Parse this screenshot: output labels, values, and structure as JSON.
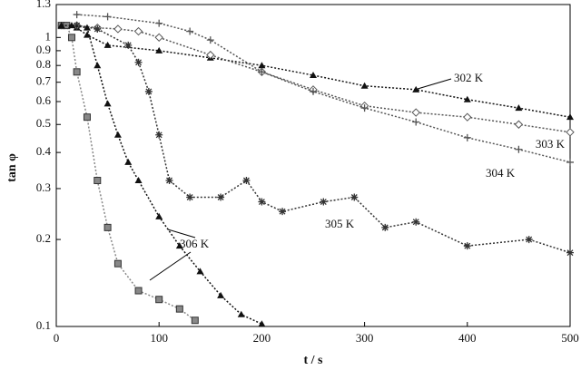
{
  "chart_data": {
    "type": "scatter",
    "xlabel": "t / s",
    "ylabel": "tan φ",
    "xlim": [
      0,
      500
    ],
    "xticks": [
      0,
      100,
      200,
      300,
      400,
      500
    ],
    "ylim": [
      0.1,
      1.3
    ],
    "yscale": "log",
    "yticks": [
      0.1,
      0.2,
      0.3,
      0.4,
      0.5,
      0.6,
      0.7,
      0.8,
      0.9,
      1,
      1.3
    ],
    "annotations": [
      "302 K",
      "303 K",
      "304 K",
      "305 K",
      "306 K"
    ],
    "series": [
      {
        "marker": "triangle",
        "color": "#111111",
        "x": [
          10,
          20,
          30,
          50,
          100,
          150,
          200,
          250,
          300,
          350,
          400,
          450,
          500
        ],
        "values": [
          1.1,
          1.08,
          1.02,
          0.94,
          0.9,
          0.85,
          0.8,
          0.74,
          0.68,
          0.66,
          0.61,
          0.57,
          0.53
        ]
      },
      {
        "marker": "diamond",
        "color": "#555555",
        "x": [
          20,
          40,
          60,
          80,
          100,
          150,
          200,
          250,
          300,
          350,
          400,
          450,
          500
        ],
        "values": [
          1.1,
          1.08,
          1.07,
          1.05,
          1.0,
          0.87,
          0.76,
          0.66,
          0.58,
          0.55,
          0.53,
          0.5,
          0.47
        ]
      },
      {
        "marker": "plus",
        "color": "#555555",
        "x": [
          20,
          50,
          100,
          130,
          150,
          200,
          250,
          300,
          350,
          400,
          450,
          500
        ],
        "values": [
          1.2,
          1.18,
          1.12,
          1.05,
          0.98,
          0.76,
          0.65,
          0.57,
          0.51,
          0.45,
          0.41,
          0.37
        ]
      },
      {
        "marker": "star",
        "color": "#333333",
        "x": [
          5,
          20,
          40,
          70,
          80,
          90,
          100,
          110,
          130,
          160,
          185,
          200,
          220,
          260,
          290,
          320,
          350,
          400,
          460,
          500
        ],
        "values": [
          1.1,
          1.1,
          1.07,
          0.94,
          0.82,
          0.65,
          0.46,
          0.32,
          0.28,
          0.28,
          0.32,
          0.27,
          0.25,
          0.27,
          0.28,
          0.22,
          0.23,
          0.19,
          0.2,
          0.18
        ]
      },
      {
        "marker": "square",
        "color": "#888888",
        "x": [
          5,
          10,
          15,
          20,
          30,
          40,
          50,
          60,
          80,
          100,
          120,
          135
        ],
        "values": [
          1.1,
          1.1,
          1.0,
          0.76,
          0.53,
          0.32,
          0.22,
          0.165,
          0.133,
          0.124,
          0.115,
          0.105
        ]
      },
      {
        "marker": "triangle",
        "color": "#111111",
        "x": [
          5,
          15,
          30,
          40,
          50,
          60,
          70,
          80,
          100,
          120,
          140,
          160,
          180,
          200
        ],
        "values": [
          1.1,
          1.1,
          1.08,
          0.8,
          0.59,
          0.46,
          0.37,
          0.32,
          0.24,
          0.19,
          0.155,
          0.128,
          0.11,
          0.102
        ]
      }
    ]
  }
}
